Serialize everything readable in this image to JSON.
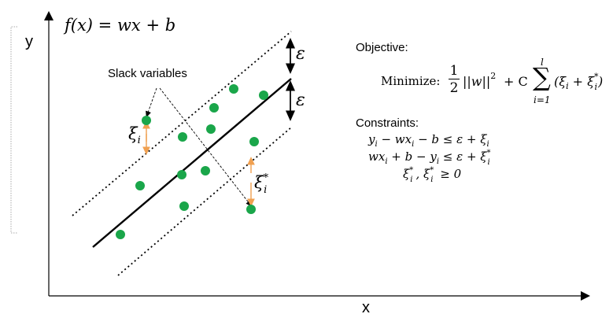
{
  "axes": {
    "x_label": "x",
    "y_label": "y"
  },
  "function_label": "f(x) = wx + b",
  "epsilon_upper": "ε",
  "epsilon_lower": "ε",
  "slack": {
    "label": "Slack variables",
    "xi": "ξ",
    "xi_sub": "i",
    "xi_star": "ξ",
    "xi_star_sup": "*",
    "xi_star_sub": "i"
  },
  "objective": {
    "title": "Objective:",
    "minimize": "Minimize:",
    "half_num": "1",
    "half_den": "2",
    "norm": "||w||",
    "sq": "2",
    "plus_c": "+ C",
    "sigma": "∑",
    "sum_upper": "l",
    "sum_lower": "i=1",
    "term": "(ξ",
    "term_sub_i": "i",
    "term_plus": " + ξ",
    "term_star": "*",
    "term_sub_i2": "i",
    "term_close": ")"
  },
  "constraints": {
    "title": "Constraints:",
    "line1": "y",
    "line1_sub": "i",
    "line1_rest": " − wx",
    "line1_sub2": "i",
    "line1_end": " − b ≤  ε + ξ",
    "line1_sub3": "i",
    "line2": "wx",
    "line2_sub": "i",
    "line2_mid": " + b − y",
    "line2_sub2": "i",
    "line2_end": " ≤  ε + ξ",
    "line2_sup": "*",
    "line2_sub3": "i",
    "line3_a": "ξ",
    "line3_a_sup": "*",
    "line3_a_sub": "i",
    "line3_b": ", ξ",
    "line3_b_sup": "*",
    "line3_b_sub": "i",
    "line3_end": "  ≥ 0"
  },
  "colors": {
    "point": "#1aa64a",
    "slack_arrow": "#f0a050",
    "line": "#000000"
  }
}
